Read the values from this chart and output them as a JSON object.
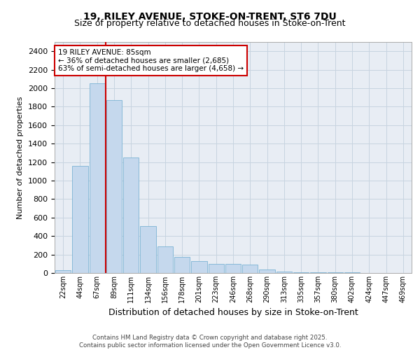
{
  "title_line1": "19, RILEY AVENUE, STOKE-ON-TRENT, ST6 7DU",
  "title_line2": "Size of property relative to detached houses in Stoke-on-Trent",
  "xlabel": "Distribution of detached houses by size in Stoke-on-Trent",
  "ylabel": "Number of detached properties",
  "categories": [
    "22sqm",
    "44sqm",
    "67sqm",
    "89sqm",
    "111sqm",
    "134sqm",
    "156sqm",
    "178sqm",
    "201sqm",
    "223sqm",
    "246sqm",
    "268sqm",
    "290sqm",
    "313sqm",
    "335sqm",
    "357sqm",
    "380sqm",
    "402sqm",
    "424sqm",
    "447sqm",
    "469sqm"
  ],
  "values": [
    30,
    1160,
    2050,
    1870,
    1250,
    510,
    290,
    175,
    130,
    100,
    95,
    90,
    35,
    15,
    10,
    5,
    5,
    5,
    2,
    2,
    2
  ],
  "bar_color": "#c5d8ed",
  "bar_edge_color": "#7ab3d4",
  "vline_x": 2.5,
  "vline_color": "#cc0000",
  "annotation_text": "19 RILEY AVENUE: 85sqm\n← 36% of detached houses are smaller (2,685)\n63% of semi-detached houses are larger (4,658) →",
  "annotation_box_color": "#ffffff",
  "annotation_box_edge": "#cc0000",
  "ylim": [
    0,
    2500
  ],
  "yticks": [
    0,
    200,
    400,
    600,
    800,
    1000,
    1200,
    1400,
    1600,
    1800,
    2000,
    2200,
    2400
  ],
  "grid_color": "#c8d4e0",
  "bg_color": "#e8edf4",
  "footer_line1": "Contains HM Land Registry data © Crown copyright and database right 2025.",
  "footer_line2": "Contains public sector information licensed under the Open Government Licence v3.0."
}
